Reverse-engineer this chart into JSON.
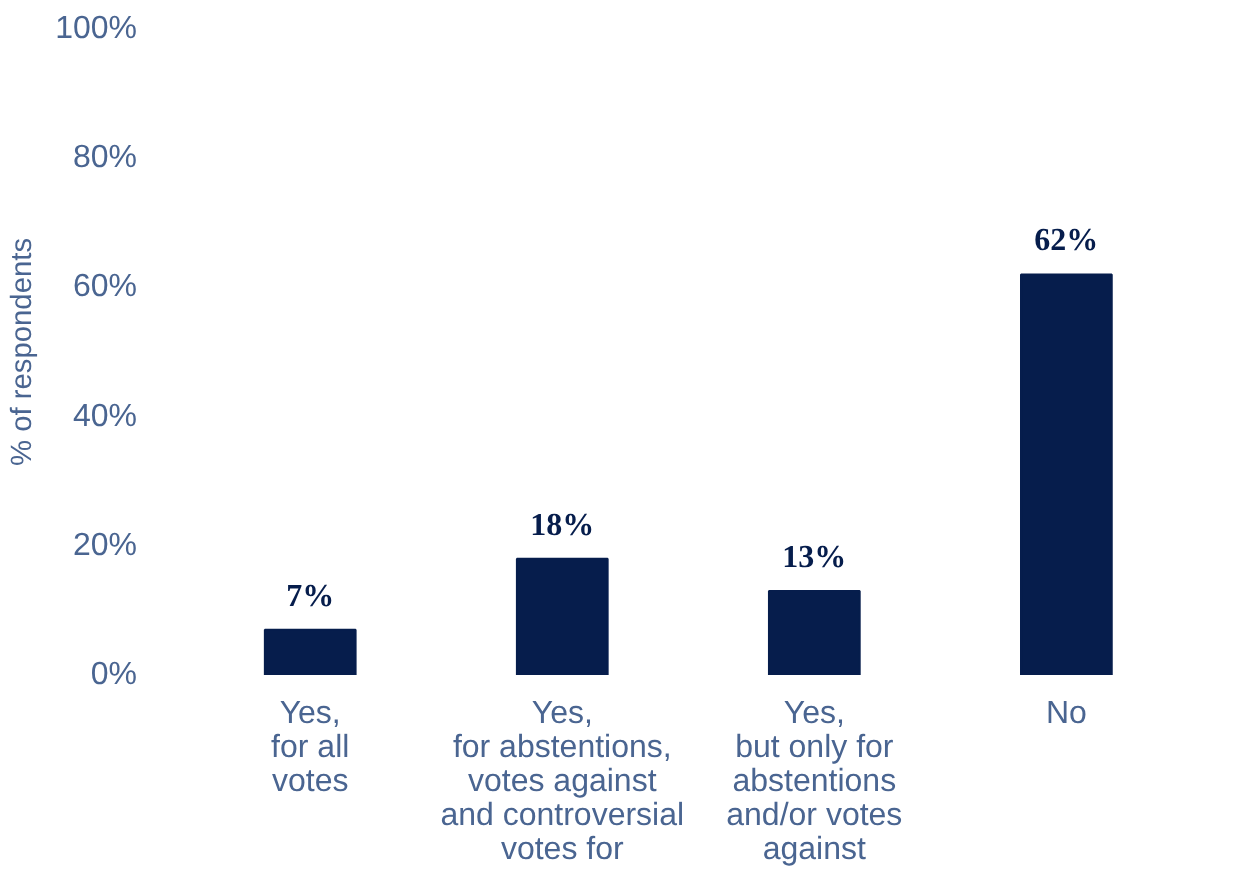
{
  "chart_data": {
    "type": "bar",
    "ylabel": "% of respondents",
    "categories": [
      "Yes,\nfor all\nvotes",
      "Yes,\nfor abstentions,\nvotes against\nand controversial\nvotes for",
      "Yes,\nbut only for\nabstentions\nand/or votes\nagainst",
      "No"
    ],
    "values": [
      7,
      18,
      13,
      62
    ],
    "color": "#061d4c",
    "value_labels": [
      "7%",
      "18%",
      "13%",
      "62%"
    ],
    "ylim": [
      0,
      100
    ],
    "yticks": [
      {
        "value": 0,
        "label": "0%"
      },
      {
        "value": 20,
        "label": "20%"
      },
      {
        "value": 40,
        "label": "40%"
      },
      {
        "value": 60,
        "label": "60%"
      },
      {
        "value": 80,
        "label": "80%"
      },
      {
        "value": 100,
        "label": "100%"
      }
    ],
    "grid": false
  }
}
